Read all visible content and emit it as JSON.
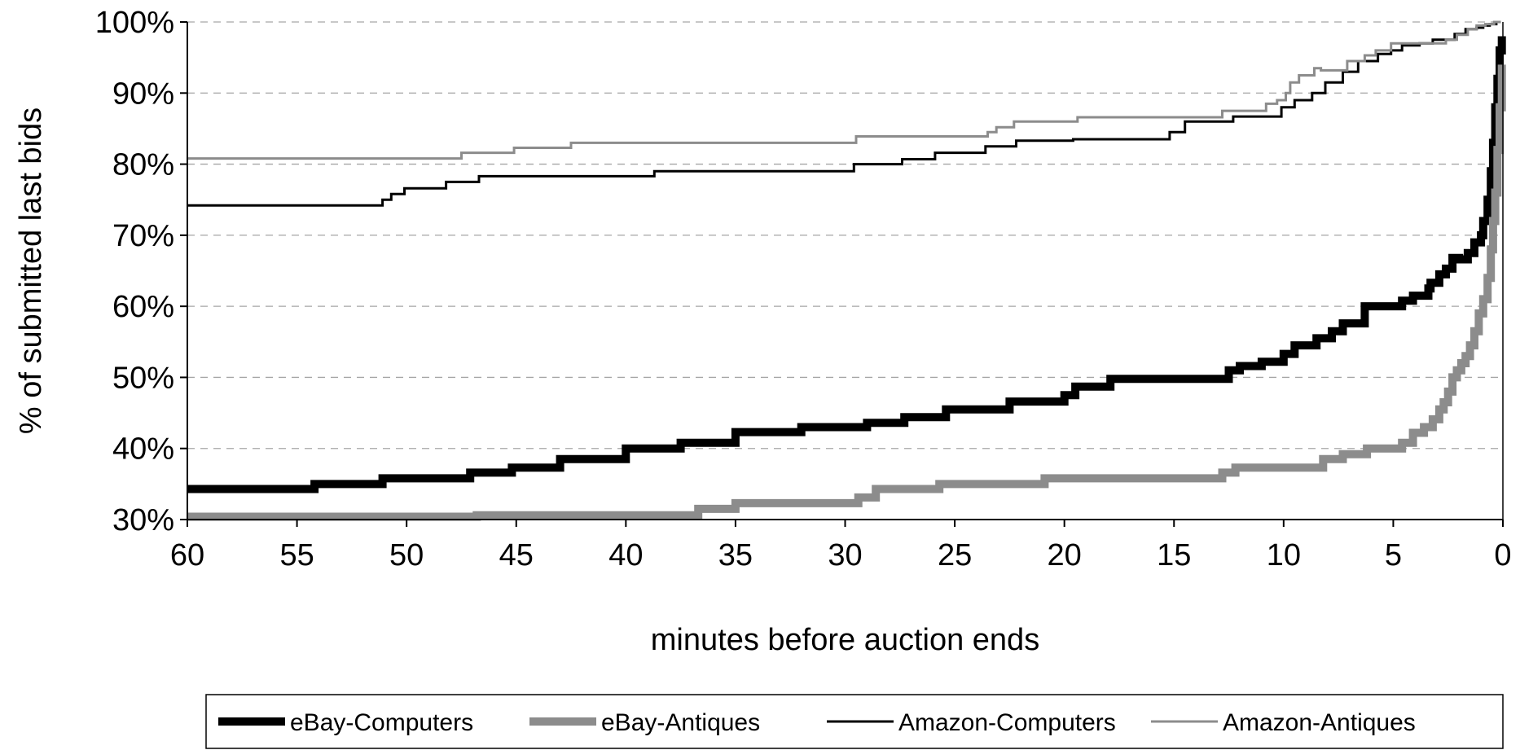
{
  "chart_data": {
    "type": "line",
    "title": "",
    "xlabel": "minutes before auction ends",
    "ylabel": "% of submitted last bids",
    "xlim": [
      60,
      0
    ],
    "ylim": [
      30,
      100
    ],
    "x_reversed": true,
    "x_ticks": [
      60,
      55,
      50,
      45,
      40,
      35,
      30,
      25,
      20,
      15,
      10,
      5,
      0
    ],
    "y_ticks": [
      30,
      40,
      50,
      60,
      70,
      80,
      90,
      100
    ],
    "y_tick_format": "percent",
    "grid": "horizontal dashed",
    "legend_position": "bottom",
    "series": [
      {
        "name": "eBay-Computers",
        "color": "#000000",
        "line_weight": "heavy",
        "x": [
          60,
          54.2,
          51.1,
          47.1,
          45.2,
          43,
          40,
          37.5,
          35,
          32,
          29,
          27.3,
          25.4,
          22.5,
          20,
          19.5,
          17.9,
          12.5,
          12,
          11,
          10,
          9.5,
          8.5,
          7.8,
          7.3,
          6.3,
          4.6,
          4.1,
          3.4,
          3.3,
          2.9,
          2.6,
          2.3,
          2.0,
          1.6,
          1.3,
          1.0,
          0.9,
          0.7,
          0.55,
          0.45,
          0.35,
          0.25,
          0.15,
          0.05
        ],
        "y": [
          34.3,
          35,
          35.8,
          36.6,
          37.3,
          38.5,
          40,
          40.8,
          42.3,
          43,
          43.6,
          44.4,
          45.5,
          46.6,
          47.5,
          48.7,
          49.8,
          51,
          51.6,
          52.2,
          53.3,
          54.5,
          55.5,
          56.5,
          57.6,
          60,
          60.8,
          61.5,
          62.5,
          63.3,
          64.5,
          65.3,
          66.8,
          66.6,
          67.5,
          69,
          70,
          72,
          75,
          79,
          83,
          88,
          92,
          96,
          98
        ]
      },
      {
        "name": "eBay-Antiques",
        "color": "#8c8c8c",
        "line_weight": "heavy",
        "x": [
          60,
          46.8,
          36.7,
          35,
          29.4,
          28.6,
          25.7,
          20.9,
          12.8,
          12.2,
          8.2,
          7.3,
          6.2,
          4.6,
          4.1,
          3.6,
          3.2,
          2.9,
          2.7,
          2.5,
          2.3,
          2.1,
          1.9,
          1.7,
          1.5,
          1.3,
          1.1,
          0.9,
          0.7,
          0.55,
          0.45,
          0.35,
          0.25,
          0.15,
          0.05
        ],
        "y": [
          30.4,
          30.6,
          31.5,
          32.3,
          33.1,
          34.3,
          35,
          35.8,
          36.6,
          37.3,
          38.5,
          39.2,
          40,
          40.8,
          42.2,
          43,
          44.1,
          45.5,
          46.5,
          48,
          50,
          51,
          52,
          53,
          54.5,
          56.5,
          59,
          61,
          64,
          68,
          72,
          76,
          82,
          88,
          94
        ]
      },
      {
        "name": "Amazon-Computers",
        "color": "#000000",
        "line_weight": "thin",
        "x": [
          60,
          51.1,
          50.7,
          50.1,
          48.2,
          46.7,
          38.7,
          29.6,
          27.4,
          25.9,
          23.6,
          22.2,
          19.6,
          15.2,
          14.5,
          12.3,
          10.1,
          9.5,
          8.7,
          8.1,
          7.3,
          6.6,
          5.7,
          5.1,
          4.6,
          3.8,
          3.2,
          2.2,
          1.7,
          1.2,
          0.9,
          0.6,
          0.3,
          0.1
        ],
        "y": [
          74.2,
          75,
          75.8,
          76.6,
          77.5,
          78.3,
          79,
          80,
          80.7,
          81.6,
          82.5,
          83.3,
          83.5,
          84.5,
          86,
          86.7,
          88,
          89,
          90,
          91.5,
          93,
          94.5,
          95.5,
          96,
          96.7,
          97,
          97.5,
          98.3,
          99,
          99.2,
          99.5,
          99.7,
          100,
          100
        ]
      },
      {
        "name": "Amazon-Antiques",
        "color": "#8c8c8c",
        "line_weight": "thin",
        "x": [
          60,
          47.5,
          45.1,
          42.5,
          29.5,
          23.5,
          23.1,
          22.3,
          19.4,
          12.8,
          10.8,
          10.3,
          9.9,
          9.7,
          9.3,
          8.6,
          8.3,
          7.1,
          6.3,
          5.8,
          5.1,
          2.6,
          2.1,
          1.6,
          1.2,
          0.8,
          0.4,
          0.1
        ],
        "y": [
          80.8,
          81.6,
          82.3,
          83,
          83.9,
          84.5,
          85.2,
          86,
          86.6,
          87.5,
          88.5,
          89,
          90,
          91.5,
          92.5,
          93.5,
          93.2,
          94.5,
          95.3,
          96,
          97,
          97.5,
          98.2,
          99,
          99.5,
          99.7,
          100,
          100
        ]
      }
    ]
  }
}
